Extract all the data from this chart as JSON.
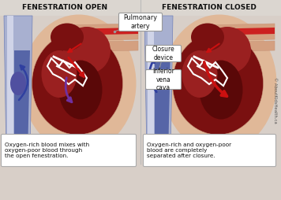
{
  "title_left": "FENESTRATION OPEN",
  "title_right": "FENESTRATION CLOSED",
  "caption_left": "Oxygen-rich blood mixes with\noxygen-poor blood through\nthe open fenestration.",
  "caption_right": "Oxygen-rich and oxygen-poor\nblood are completely\nseparated after closure.",
  "label_pulmonary": "Pulmonary\nartery",
  "label_closure": "Closure\ndevice",
  "label_vena": "Inferior\nvena\ncava",
  "watermark": "© AboutKidsHealth.ca",
  "bg_header": "#e8e4e0",
  "bg_main": "#d8cfc8",
  "skin_outer": "#c8967a",
  "skin_mid": "#d4a080",
  "skin_light": "#e0b898",
  "heart_very_dark": "#5a0808",
  "heart_dark": "#7a1010",
  "heart_mid": "#9a2020",
  "heart_lighter": "#b84040",
  "heart_pink": "#c87070",
  "vessel_blue_dark": "#4858a0",
  "vessel_blue_mid": "#7080b8",
  "vessel_blue_light": "#a8b0d0",
  "vessel_gray": "#9898b0",
  "vessel_red": "#cc2020",
  "vessel_red_dark": "#8a1010",
  "arrow_red": "#cc1010",
  "arrow_purple": "#7030a0",
  "arrow_blue": "#3040a0",
  "white": "#ffffff",
  "box_bg": "#ffffff",
  "box_border": "#999999",
  "title_color": "#111111",
  "text_color": "#111111",
  "caption_border": "#aaaaaa"
}
